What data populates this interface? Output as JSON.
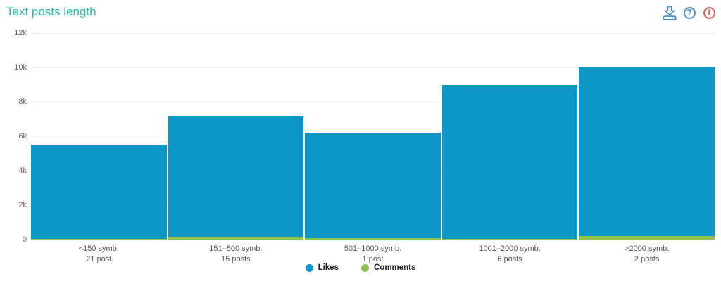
{
  "header": {
    "title": "Text posts length",
    "help_glyph": "?",
    "info_glyph": "i"
  },
  "chart_data": {
    "type": "bar",
    "title": "Text posts length",
    "categories": [
      "<150 symb.",
      "151–500 symb.",
      "501–1000 symb.",
      "1001–2000 symb.",
      ">2000 symb."
    ],
    "category_counts": [
      "21 post",
      "15 posts",
      "1 post",
      "6 posts",
      "2 posts"
    ],
    "series": [
      {
        "name": "Likes",
        "color": "#0d96c8",
        "values": [
          5500,
          7200,
          6200,
          9000,
          10000
        ]
      },
      {
        "name": "Comments",
        "color": "#90c153",
        "values": [
          50,
          120,
          80,
          60,
          200
        ]
      }
    ],
    "ylim": [
      0,
      12000
    ],
    "yticks": [
      {
        "value": 0,
        "label": "0"
      },
      {
        "value": 2000,
        "label": "2k"
      },
      {
        "value": 4000,
        "label": "4k"
      },
      {
        "value": 6000,
        "label": "6k"
      },
      {
        "value": 8000,
        "label": "8k"
      },
      {
        "value": 10000,
        "label": "10k"
      },
      {
        "value": 12000,
        "label": "12k"
      }
    ],
    "grid": "horizontal dotted",
    "legend_position": "bottom-center"
  },
  "colors": {
    "title": "#2cbca6",
    "likes": "#0d96c8",
    "comments": "#90c153",
    "icon_blue": "#4a90d2",
    "icon_red": "#e05f5f",
    "axis_text": "#666666",
    "gridline": "#e2e2e2",
    "baseline": "#d2d2d2"
  }
}
